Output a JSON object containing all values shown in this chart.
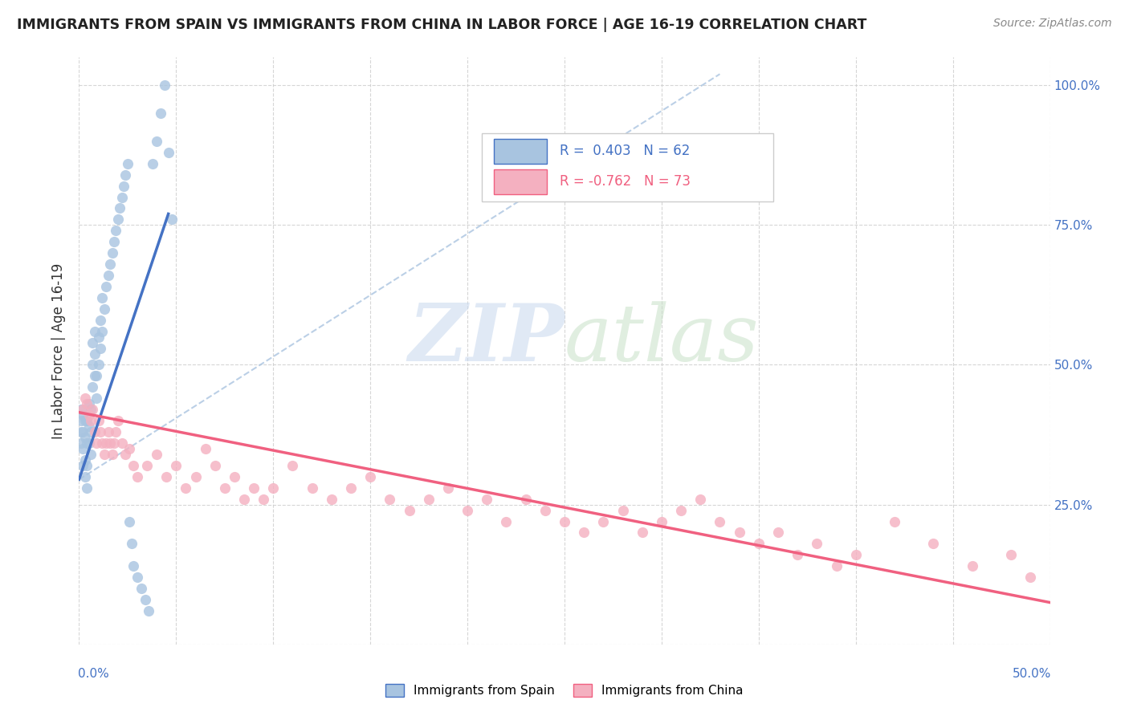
{
  "title": "IMMIGRANTS FROM SPAIN VS IMMIGRANTS FROM CHINA IN LABOR FORCE | AGE 16-19 CORRELATION CHART",
  "source": "Source: ZipAtlas.com",
  "ylabel": "In Labor Force | Age 16-19",
  "color_spain": "#a8c4e0",
  "color_china": "#f4b0c0",
  "color_spain_line": "#4472c4",
  "color_china_line": "#f06080",
  "xlim": [
    0.0,
    0.5
  ],
  "ylim": [
    0.0,
    1.05
  ],
  "spain_scatter_x": [
    0.001,
    0.001,
    0.001,
    0.001,
    0.002,
    0.002,
    0.002,
    0.002,
    0.003,
    0.003,
    0.003,
    0.003,
    0.004,
    0.004,
    0.004,
    0.004,
    0.005,
    0.005,
    0.005,
    0.006,
    0.006,
    0.006,
    0.007,
    0.007,
    0.007,
    0.008,
    0.008,
    0.008,
    0.009,
    0.009,
    0.01,
    0.01,
    0.011,
    0.011,
    0.012,
    0.012,
    0.013,
    0.014,
    0.015,
    0.016,
    0.017,
    0.018,
    0.019,
    0.02,
    0.021,
    0.022,
    0.023,
    0.024,
    0.025,
    0.026,
    0.027,
    0.028,
    0.03,
    0.032,
    0.034,
    0.036,
    0.038,
    0.04,
    0.042,
    0.044,
    0.046,
    0.048
  ],
  "spain_scatter_y": [
    0.36,
    0.38,
    0.4,
    0.42,
    0.32,
    0.35,
    0.38,
    0.41,
    0.3,
    0.33,
    0.37,
    0.4,
    0.28,
    0.32,
    0.36,
    0.4,
    0.36,
    0.39,
    0.43,
    0.34,
    0.38,
    0.42,
    0.46,
    0.5,
    0.54,
    0.48,
    0.52,
    0.56,
    0.44,
    0.48,
    0.5,
    0.55,
    0.53,
    0.58,
    0.56,
    0.62,
    0.6,
    0.64,
    0.66,
    0.68,
    0.7,
    0.72,
    0.74,
    0.76,
    0.78,
    0.8,
    0.82,
    0.84,
    0.86,
    0.22,
    0.18,
    0.14,
    0.12,
    0.1,
    0.08,
    0.06,
    0.86,
    0.9,
    0.95,
    1.0,
    0.88,
    0.76
  ],
  "china_scatter_x": [
    0.002,
    0.003,
    0.004,
    0.005,
    0.006,
    0.007,
    0.008,
    0.009,
    0.01,
    0.011,
    0.012,
    0.013,
    0.014,
    0.015,
    0.016,
    0.017,
    0.018,
    0.019,
    0.02,
    0.022,
    0.024,
    0.026,
    0.028,
    0.03,
    0.035,
    0.04,
    0.045,
    0.05,
    0.055,
    0.06,
    0.065,
    0.07,
    0.075,
    0.08,
    0.085,
    0.09,
    0.095,
    0.1,
    0.11,
    0.12,
    0.13,
    0.14,
    0.15,
    0.16,
    0.17,
    0.18,
    0.19,
    0.2,
    0.21,
    0.22,
    0.23,
    0.24,
    0.25,
    0.26,
    0.27,
    0.28,
    0.29,
    0.3,
    0.31,
    0.32,
    0.33,
    0.34,
    0.35,
    0.36,
    0.37,
    0.38,
    0.39,
    0.4,
    0.42,
    0.44,
    0.46,
    0.48,
    0.49
  ],
  "china_scatter_y": [
    0.42,
    0.44,
    0.43,
    0.41,
    0.4,
    0.42,
    0.38,
    0.36,
    0.4,
    0.38,
    0.36,
    0.34,
    0.36,
    0.38,
    0.36,
    0.34,
    0.36,
    0.38,
    0.4,
    0.36,
    0.34,
    0.35,
    0.32,
    0.3,
    0.32,
    0.34,
    0.3,
    0.32,
    0.28,
    0.3,
    0.35,
    0.32,
    0.28,
    0.3,
    0.26,
    0.28,
    0.26,
    0.28,
    0.32,
    0.28,
    0.26,
    0.28,
    0.3,
    0.26,
    0.24,
    0.26,
    0.28,
    0.24,
    0.26,
    0.22,
    0.26,
    0.24,
    0.22,
    0.2,
    0.22,
    0.24,
    0.2,
    0.22,
    0.24,
    0.26,
    0.22,
    0.2,
    0.18,
    0.2,
    0.16,
    0.18,
    0.14,
    0.16,
    0.22,
    0.18,
    0.14,
    0.16,
    0.12
  ],
  "spain_line_x": [
    0.0,
    0.046
  ],
  "spain_line_y": [
    0.295,
    0.77
  ],
  "china_line_x": [
    0.0,
    0.5
  ],
  "china_line_y": [
    0.415,
    0.075
  ],
  "dash_line_x": [
    0.0,
    0.33
  ],
  "dash_line_y": [
    0.295,
    1.02
  ]
}
